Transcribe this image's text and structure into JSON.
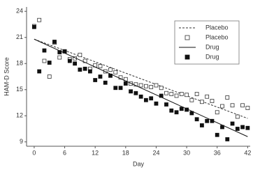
{
  "chart_data": {
    "type": "scatter",
    "xlabel": "Day",
    "ylabel": "HAM-D Score",
    "xlim": [
      -1.5,
      42.5
    ],
    "ylim": [
      8.5,
      24.5
    ],
    "xticks": [
      0,
      6,
      12,
      18,
      24,
      30,
      36,
      42
    ],
    "yticks": [
      9,
      12,
      15,
      18,
      21,
      24
    ],
    "legend": "upper right",
    "series": [
      {
        "name": "Placebo",
        "kind": "line",
        "line_style": "dashed",
        "color": "#333333",
        "x": [
          0,
          42
        ],
        "values": [
          20.8,
          11.7
        ]
      },
      {
        "name": "Placebo",
        "kind": "scatter",
        "marker": "open",
        "color": "#333333",
        "x": [
          0,
          1,
          2,
          3,
          4,
          5,
          6,
          7,
          8,
          9,
          10,
          11,
          12,
          13,
          14,
          15,
          16,
          17,
          18,
          19,
          20,
          21,
          22,
          23,
          24,
          25,
          26,
          27,
          28,
          29,
          30,
          31,
          32,
          33,
          34,
          35,
          36,
          37,
          38,
          39,
          40,
          41,
          42
        ],
        "values": [
          22.3,
          23,
          18.3,
          16.5,
          20.4,
          18.7,
          19.4,
          18.5,
          18.6,
          19,
          18.3,
          17.4,
          17.8,
          17.7,
          17.1,
          17.3,
          17,
          16.4,
          16.2,
          15.7,
          15.6,
          15.5,
          15.4,
          15.3,
          15.5,
          15.2,
          14.6,
          14.5,
          14.3,
          14.5,
          14.4,
          13.8,
          14.5,
          13.6,
          14.2,
          13.7,
          12.4,
          13.1,
          14.1,
          13.2,
          11.9,
          13.2,
          12.9
        ]
      },
      {
        "name": "Drug",
        "kind": "line",
        "line_style": "solid",
        "color": "#111111",
        "x": [
          0,
          42
        ],
        "values": [
          20.8,
          9.6
        ]
      },
      {
        "name": "Drug",
        "kind": "scatter",
        "marker": "filled",
        "color": "#111111",
        "x": [
          0,
          1,
          2,
          3,
          4,
          5,
          6,
          7,
          8,
          9,
          10,
          11,
          12,
          13,
          14,
          15,
          16,
          17,
          18,
          19,
          20,
          21,
          22,
          23,
          24,
          25,
          26,
          27,
          28,
          29,
          30,
          31,
          32,
          33,
          34,
          35,
          36,
          37,
          38,
          39,
          40,
          41,
          42
        ],
        "values": [
          22.2,
          17.1,
          19.5,
          18.1,
          20.5,
          19.3,
          19.4,
          18.3,
          18,
          17.3,
          17.4,
          17.1,
          16.1,
          16.5,
          15.8,
          16.6,
          15.2,
          15.2,
          15.7,
          14.8,
          14.6,
          14.2,
          13.8,
          14,
          13.4,
          14.3,
          13.3,
          12.6,
          12.4,
          12.8,
          12.7,
          12.3,
          11.6,
          10.9,
          11.4,
          11.4,
          9.8,
          10.7,
          9.3,
          11.1,
          10.5,
          10.7,
          10.6
        ]
      }
    ]
  }
}
